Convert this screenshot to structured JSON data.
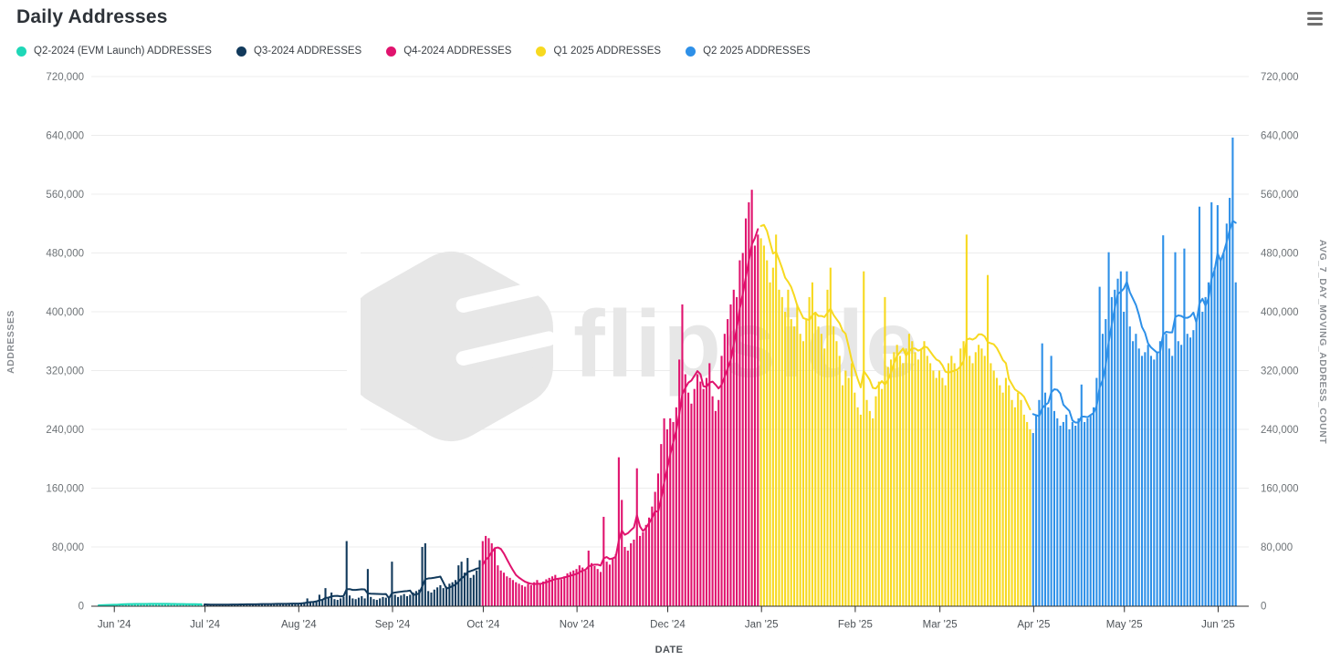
{
  "header": {
    "title": "Daily Addresses",
    "menu_icon": "hamburger-menu-icon"
  },
  "watermark": {
    "text": "flipside",
    "logo": "flipside-cube-logo",
    "color": "#e7e7e7"
  },
  "colors": {
    "gridline": "#ececec",
    "axis": "#2f2f2f",
    "tick_label": "#6e7377",
    "axis_title": "#8a8e93"
  },
  "chart_data": {
    "type": "bar",
    "title": "Daily Addresses",
    "xlabel": "DATE",
    "ylabel_left": "ADDRESSES",
    "ylabel_right": "AVG_7_DAY_MOVING_ADDRESS_COUNT",
    "ylim": [
      0,
      720000
    ],
    "y_ticks": [
      0,
      80000,
      160000,
      240000,
      320000,
      400000,
      480000,
      560000,
      640000,
      720000
    ],
    "grid": "horizontal",
    "legend_position": "top",
    "moving_average": {
      "window": 7,
      "label": "AVG_7_DAY_MOVING_ADDRESS_COUNT"
    },
    "x_ticks": [
      {
        "label": "Jun '24",
        "day": 5
      },
      {
        "label": "Jul '24",
        "day": 35
      },
      {
        "label": "Aug '24",
        "day": 66
      },
      {
        "label": "Sep '24",
        "day": 97
      },
      {
        "label": "Oct '24",
        "day": 127
      },
      {
        "label": "Nov '24",
        "day": 158
      },
      {
        "label": "Dec '24",
        "day": 188
      },
      {
        "label": "Jan '25",
        "day": 219
      },
      {
        "label": "Feb '25",
        "day": 250
      },
      {
        "label": "Mar '25",
        "day": 278
      },
      {
        "label": "Apr '25",
        "day": 309
      },
      {
        "label": "May '25",
        "day": 339
      },
      {
        "label": "Jun '25",
        "day": 370
      }
    ],
    "series": [
      {
        "name": "Q2-2024 (EVM Launch) ADDRESSES",
        "color": "#1fd7b7",
        "values": [
          600,
          900,
          1200,
          1500,
          1800,
          2000,
          2200,
          2500,
          2600,
          2400,
          2300,
          2500,
          2700,
          2800,
          2600,
          2500,
          2400,
          2600,
          2800,
          3000,
          2800,
          2600,
          2400,
          2200,
          2000,
          2100,
          2300,
          2500,
          2400,
          2200,
          2000,
          1900,
          1800,
          1700,
          1600
        ]
      },
      {
        "name": "Q3-2024 ADDRESSES",
        "color": "#123a5c",
        "values": [
          1500,
          1300,
          1400,
          1600,
          1800,
          1500,
          1400,
          1700,
          1900,
          2100,
          1800,
          1600,
          2000,
          2200,
          2400,
          2100,
          1900,
          2300,
          2500,
          2700,
          2400,
          2200,
          2600,
          2800,
          3000,
          2700,
          2500,
          2900,
          3100,
          3300,
          3000,
          3500,
          4000,
          5000,
          10000,
          6000,
          5500,
          7000,
          15000,
          8000,
          24000,
          12000,
          18000,
          9000,
          8000,
          10000,
          12000,
          88000,
          14000,
          10000,
          9000,
          11000,
          13000,
          10000,
          50000,
          12000,
          9000,
          8000,
          10000,
          12000,
          11000,
          10000,
          60000,
          15000,
          12000,
          14000,
          16000,
          13000,
          15000,
          18000,
          20000,
          22000,
          80000,
          85000,
          20000,
          18000,
          22000,
          25000,
          28000,
          24000,
          26000,
          30000,
          32000,
          35000,
          55000,
          60000,
          45000,
          65000,
          38000,
          42000,
          48000,
          62000
        ]
      },
      {
        "name": "Q4-2024 ADDRESSES",
        "color": "#e0136e",
        "values": [
          88000,
          95000,
          92000,
          85000,
          78000,
          55000,
          48000,
          45000,
          40000,
          38000,
          35000,
          32000,
          30000,
          28000,
          26000,
          30000,
          28000,
          32000,
          35000,
          30000,
          33000,
          36000,
          38000,
          40000,
          42000,
          38000,
          36000,
          40000,
          44000,
          46000,
          48000,
          50000,
          55000,
          52000,
          48000,
          75000,
          58000,
          54000,
          50000,
          46000,
          121000,
          60000,
          56000,
          64000,
          70000,
          202000,
          144000,
          80000,
          75000,
          85000,
          90000,
          187000,
          95000,
          100000,
          110000,
          120000,
          135000,
          155000,
          180000,
          220000,
          255000,
          240000,
          255000,
          250000,
          270000,
          335000,
          410000,
          315000,
          290000,
          275000,
          295000,
          315000,
          305000,
          295000,
          310000,
          330000,
          285000,
          265000,
          280000,
          340000,
          370000,
          390000,
          410000,
          430000,
          420000,
          470000,
          480000,
          527000,
          549000,
          566000,
          490000,
          505000
        ]
      },
      {
        "name": "Q1 2025 ADDRESSES",
        "color": "#f7d920",
        "values": [
          500000,
          490000,
          470000,
          440000,
          460000,
          505000,
          430000,
          420000,
          400000,
          430000,
          390000,
          380000,
          410000,
          370000,
          360000,
          390000,
          420000,
          440000,
          400000,
          380000,
          370000,
          350000,
          430000,
          460000,
          380000,
          360000,
          340000,
          300000,
          320000,
          310000,
          330000,
          290000,
          270000,
          260000,
          455000,
          280000,
          265000,
          255000,
          285000,
          305000,
          295000,
          420000,
          325000,
          335000,
          345000,
          355000,
          340000,
          330000,
          350000,
          370000,
          360000,
          345000,
          335000,
          350000,
          360000,
          340000,
          330000,
          320000,
          310000,
          320000,
          310000,
          300000,
          330000,
          340000,
          330000,
          320000,
          350000,
          360000,
          505000,
          340000,
          330000,
          345000,
          355000,
          350000,
          340000,
          450000,
          330000,
          320000,
          310000,
          300000,
          290000,
          310000,
          300000,
          280000,
          270000,
          290000,
          280000,
          260000,
          250000,
          240000
        ]
      },
      {
        "name": "Q2 2025 ADDRESSES",
        "color": "#2e90e8",
        "values": [
          235000,
          260000,
          280000,
          357000,
          290000,
          270000,
          340000,
          265000,
          255000,
          245000,
          250000,
          260000,
          240000,
          250000,
          245000,
          255000,
          301000,
          250000,
          255000,
          260000,
          270000,
          310000,
          434000,
          370000,
          390000,
          481000,
          420000,
          430000,
          445000,
          455000,
          400000,
          455000,
          380000,
          360000,
          370000,
          350000,
          340000,
          345000,
          355000,
          340000,
          335000,
          345000,
          360000,
          504000,
          370000,
          350000,
          340000,
          481000,
          360000,
          355000,
          486000,
          370000,
          365000,
          375000,
          385000,
          543000,
          400000,
          420000,
          440000,
          549000,
          460000,
          545000,
          470000,
          480000,
          520000,
          555000,
          637000,
          440000
        ]
      }
    ]
  }
}
